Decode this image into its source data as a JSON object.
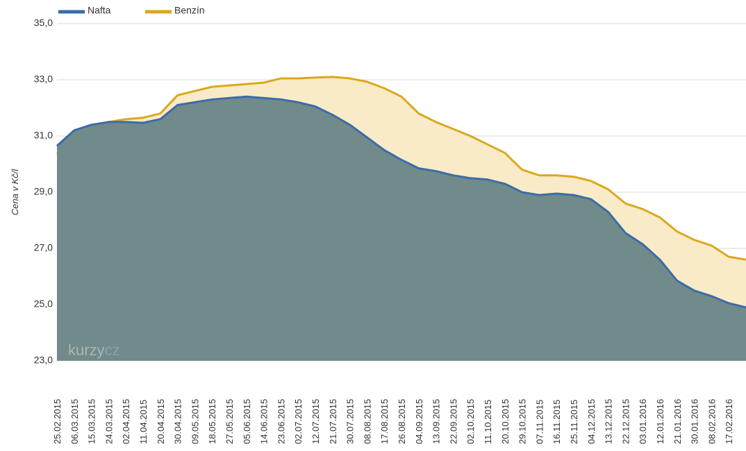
{
  "chart_data": {
    "type": "area",
    "y_axis_label": "Cena v Kč/l",
    "watermark": [
      "kurzy",
      "cz"
    ],
    "categories": [
      "25.02.2015",
      "06.03.2015",
      "15.03.2015",
      "24.03.2015",
      "02.04.2015",
      "11.04.2015",
      "20.04.2015",
      "30.04.2015",
      "09.05.2015",
      "18.05.2015",
      "27.05.2015",
      "05.06.2015",
      "14.06.2015",
      "23.06.2015",
      "02.07.2015",
      "12.07.2015",
      "21.07.2015",
      "30.07.2015",
      "08.08.2015",
      "17.08.2015",
      "26.08.2015",
      "04.09.2015",
      "13.09.2015",
      "22.09.2015",
      "02.10.2015",
      "11.10.2015",
      "20.10.2015",
      "29.10.2015",
      "07.11.2015",
      "16.11.2015",
      "25.11.2015",
      "04.12.2015",
      "13.12.2015",
      "22.12.2015",
      "03.01.2016",
      "12.01.2016",
      "21.01.2016",
      "30.01.2016",
      "08.02.2016",
      "17.02.2016",
      null
    ],
    "series": [
      {
        "name": "Benzín",
        "color": "#dba81c",
        "fill_color": "#f9ebc8",
        "values": [
          30.35,
          30.9,
          31.3,
          31.5,
          31.6,
          31.65,
          31.8,
          32.45,
          32.6,
          32.75,
          32.8,
          32.85,
          32.9,
          33.05,
          33.05,
          33.08,
          33.1,
          33.05,
          32.93,
          32.7,
          32.4,
          31.8,
          31.5,
          31.25,
          31.0,
          30.7,
          30.4,
          29.8,
          29.6,
          29.6,
          29.55,
          29.4,
          29.1,
          28.6,
          28.4,
          28.1,
          27.6,
          27.3,
          27.1,
          26.7,
          26.6
        ]
      },
      {
        "name": "Nafta",
        "color": "#3c6ca8",
        "fill_color": "#718a8a",
        "values": [
          30.65,
          31.2,
          31.4,
          31.5,
          31.5,
          31.47,
          31.6,
          32.1,
          32.2,
          32.3,
          32.35,
          32.4,
          32.35,
          32.3,
          32.2,
          32.05,
          31.75,
          31.4,
          30.95,
          30.5,
          30.15,
          29.85,
          29.75,
          29.6,
          29.5,
          29.45,
          29.3,
          29.0,
          28.9,
          28.95,
          28.9,
          28.75,
          28.3,
          27.55,
          27.15,
          26.6,
          25.85,
          25.5,
          25.3,
          25.05,
          24.9
        ]
      }
    ],
    "legend_order": [
      1,
      0
    ],
    "ylim": [
      23,
      35
    ],
    "yticks": [
      {
        "value": 23,
        "label": "23,0"
      },
      {
        "value": 25,
        "label": "25,0"
      },
      {
        "value": 27,
        "label": "27,0"
      },
      {
        "value": 29,
        "label": "29,0"
      },
      {
        "value": 31,
        "label": "31,0"
      },
      {
        "value": 33,
        "label": "33,0"
      },
      {
        "value": 35,
        "label": "35,0"
      }
    ],
    "grid": true
  }
}
